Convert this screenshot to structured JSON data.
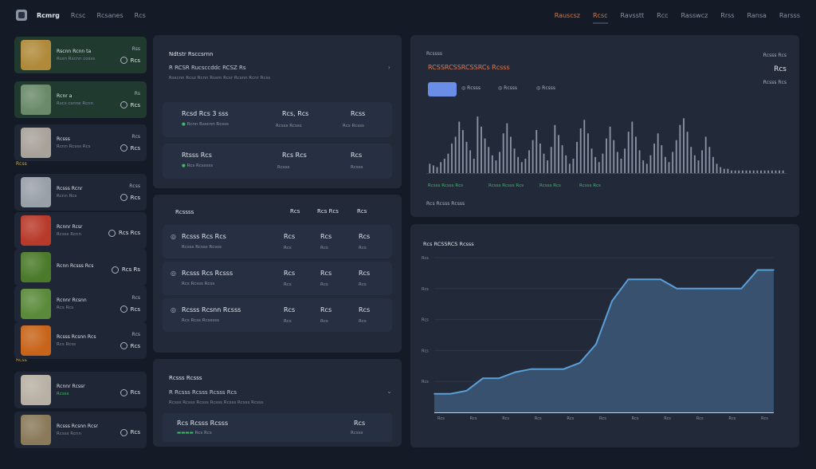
{
  "topbar": {
    "nav_left": [
      "Rcmrg",
      "Rcsc",
      "Rcsanes",
      "Rcs"
    ],
    "nav_right": [
      "Rauscsz",
      "Rcsc",
      "Ravsstt",
      "Rcc",
      "Rasswcz",
      "Rrss",
      "Ransa",
      "Rarsss"
    ]
  },
  "sidebar": {
    "section_labels": [
      "Rcss",
      "Rcss"
    ],
    "items": [
      {
        "title": "Rscnn Rcnn ta",
        "sub": "Rssn Rscnn cosss",
        "top": "Rss",
        "value": "Rcs",
        "green": true,
        "thumb": "#b08a3a"
      },
      {
        "title": "Rcnr a",
        "sub": "Rscs csnne Rcnn",
        "top": "Rs",
        "value": "Rcs",
        "green": true,
        "thumb": "#6a8a6a"
      },
      {
        "title": "Rcsss",
        "sub": "Rcnn Rcsss Rcs",
        "top": "Rcs",
        "value": "Rcs",
        "green": false,
        "thumb": "#a8a29a"
      },
      {
        "title": "Rcsss Rcnr",
        "sub": "Rcnn Rcs",
        "top": "Rcss",
        "value": "Rcs",
        "green": false,
        "thumb": "#9aa0a8"
      },
      {
        "title": "Rcnnr Rcsr",
        "sub": "Rcsss Rcnn",
        "top": "",
        "value": "Rcs Rcs",
        "green": false,
        "thumb": "#b83a2a"
      },
      {
        "title": "Rcnn Rcsss Rcs",
        "sub": "",
        "top": "",
        "value": "Rcs Rs",
        "green": false,
        "thumb": "#4a7a2a"
      },
      {
        "title": "Rcnnr Rcsnn",
        "sub": "Rcs Rcs",
        "top": "Rcs",
        "value": "Rcs",
        "green": false,
        "thumb": "#5a8a3a"
      },
      {
        "title": "Rcsss Rcsnn Rcs",
        "sub": "Rcs Rcss",
        "top": "Rcs",
        "value": "Rcs",
        "green": false,
        "thumb": "#c8641a"
      },
      {
        "title": "Rcnnr Rcssr",
        "sub": "Rcsss",
        "top": "",
        "value": "Rcs",
        "green": false,
        "thumb": "#b8b0a4"
      },
      {
        "title": "Rcsss Rcsnn Rcsr",
        "sub": "Rcsss Rcnn",
        "top": "",
        "value": "Rcs",
        "green": false,
        "thumb": "#8a7a5a"
      }
    ]
  },
  "panel1": {
    "title": "Ndtstr Rsccsrnn",
    "subtitle": "R RCSR Rucsccddc RCSZ Rs",
    "note": "Rsscnn Rcsz Rcnn Rssrn Rcsr Rcsnn Rcnr Rcss",
    "rows": [
      {
        "title": "Rcsd Rcs 3 sss",
        "sub": "Rcnn Rsscnn Rcsss",
        "c1": "Rcs, Rcs",
        "c1s": "Rcsss Rcsss",
        "c2": "Rcss",
        "c2s": "Rcs Rcsss"
      },
      {
        "title": "Rtsss Rcs",
        "sub": "Rcs Rcsssss",
        "c1": "Rcs Rcs",
        "c1s": "Rcsss",
        "c2": "Rcs",
        "c2s": "Rcsss"
      }
    ]
  },
  "panel2": {
    "title": "Rcssss",
    "headers": [
      "Rcs",
      "Rcs Rcs",
      "Rcs"
    ],
    "rows": [
      {
        "title": "Rcsss Rcs Rcs",
        "sub": "Rcsss Rcsss Rcsss",
        "c1": "Rcs",
        "c2": "Rcs",
        "c3": "Rcs",
        "s1": "Rcs",
        "s2": "Rcs",
        "s3": "Rcs"
      },
      {
        "title": "Rcsss Rcs Rcsss",
        "sub": "Rcs Rcsss Rcss",
        "c1": "Rcs",
        "c2": "Rcs",
        "c3": "Rcs",
        "s1": "Rcs",
        "s2": "Rcs",
        "s3": "Rcs"
      },
      {
        "title": "Rcsss Rcsnn Rcsss",
        "sub": "Rcs Rcss Rcsssss",
        "c1": "Rcs",
        "c2": "Rcs",
        "c3": "Rcs",
        "s1": "Rcs",
        "s2": "Rcs",
        "s3": "Rcs"
      }
    ]
  },
  "panel3": {
    "title": "Rcsss Rcsss",
    "subtitle": "R Rcsss Rcsss Rcsss Rcs",
    "note": "Rcsss Rcsss Rcsss Rcsss Rcsss Rcsss Rcsss",
    "row": {
      "title": "Rcs Rcsss Rcsss",
      "sub": "Rcs Rcs",
      "c1": "Rcs",
      "c1s": "Rcsss"
    }
  },
  "transactions": {
    "label": "Rcssss",
    "headline": "RCSSRCSSRCSSRCs Rcsss",
    "filters": [
      "Rcsss",
      "Rcsss",
      "Rcsss"
    ],
    "right_label": "Rcsss Rcs",
    "right_value": "Rcs",
    "right_sub": "Rcsss Rcs",
    "legend": [
      "Rcsss Rcsss Rcs",
      "Rcsss Rcsss Rcs",
      "Rcsss Rcs",
      "Rcsss Rcs"
    ],
    "foot": "Rcs Rcsss Rcsss"
  },
  "colors": {
    "bg": "#141a26",
    "panel": "#222a3a",
    "accent": "#e0763a",
    "green": "#3dbb5f",
    "line": "#5aa0d8",
    "area": "#3c5878"
  },
  "chart_data": [
    {
      "type": "bar",
      "title": "",
      "values": [
        0.6,
        0.5,
        0.4,
        0.7,
        0.9,
        1.2,
        1.8,
        2.2,
        3.1,
        2.6,
        1.9,
        1.4,
        0.9,
        3.4,
        2.8,
        2.1,
        1.6,
        1.1,
        0.8,
        1.3,
        2.4,
        3.0,
        2.2,
        1.5,
        1.0,
        0.7,
        0.9,
        1.4,
        2.0,
        2.6,
        1.8,
        1.2,
        0.8,
        1.6,
        2.9,
        2.3,
        1.7,
        1.1,
        0.6,
        0.9,
        1.9,
        2.7,
        3.2,
        2.4,
        1.5,
        1.0,
        0.7,
        1.2,
        2.1,
        2.8,
        2.0,
        1.3,
        0.9,
        1.5,
        2.5,
        3.1,
        2.2,
        1.4,
        0.8,
        0.6,
        1.1,
        1.8,
        2.4,
        1.7,
        1.0,
        0.7,
        1.3,
        2.0,
        2.9,
        3.3,
        2.5,
        1.6,
        1.1,
        0.8,
        1.4,
        2.2,
        1.6,
        1.0,
        0.6,
        0.4,
        0.3,
        0.3,
        0.2,
        0.2,
        0.2,
        0.2,
        0.2,
        0.2,
        0.2,
        0.2,
        0.2,
        0.2,
        0.2,
        0.2,
        0.2,
        0.2,
        0.2
      ],
      "ylim": [
        0,
        3.5
      ],
      "grid": false
    },
    {
      "type": "area",
      "title": "Rcs RCSSRCS Rcsss",
      "x": [
        0,
        1,
        2,
        3,
        4,
        5,
        6,
        7,
        8,
        9,
        10,
        11,
        12,
        13,
        14,
        15,
        16,
        17,
        18,
        19,
        20,
        21
      ],
      "values": [
        0.6,
        0.6,
        0.7,
        1.1,
        1.1,
        1.3,
        1.4,
        1.4,
        1.4,
        1.6,
        2.2,
        3.6,
        4.3,
        4.3,
        4.3,
        4.0,
        4.0,
        4.0,
        4.0,
        4.0,
        4.6,
        4.6
      ],
      "ylim": [
        0,
        5
      ],
      "yticks": [
        "Rcs",
        "Rcs",
        "Rcs",
        "Rcs",
        "Rcs"
      ],
      "xticks": [
        "Rcs",
        "Rcs",
        "Rcs",
        "Rcs",
        "Rcs",
        "Rcs",
        "Rcs",
        "Rcs",
        "Rcs",
        "Rcs",
        "Rcs"
      ],
      "grid": true
    }
  ]
}
